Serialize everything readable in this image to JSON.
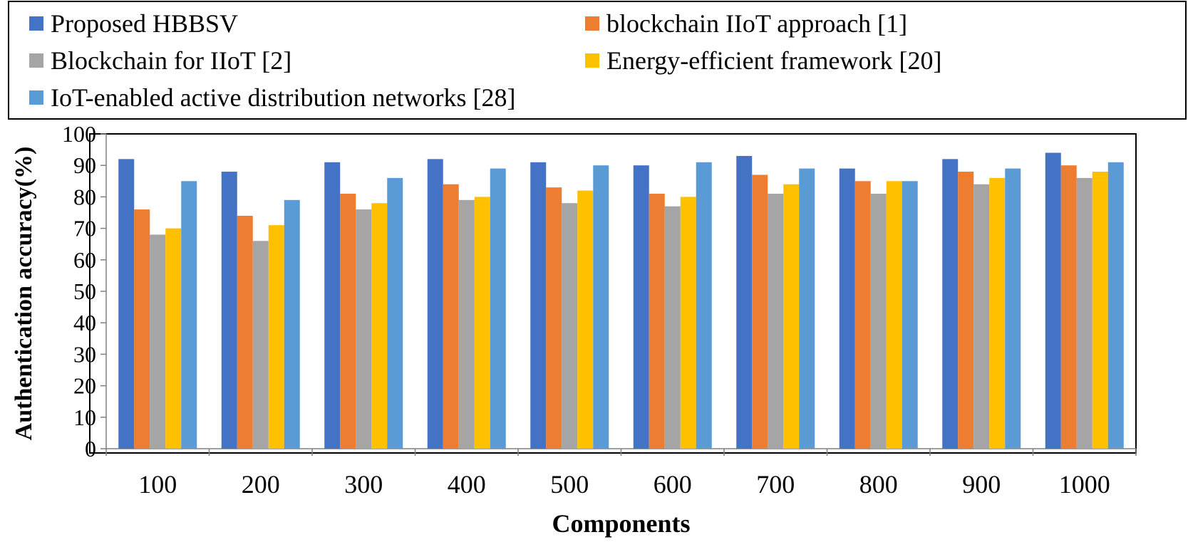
{
  "chart_data": {
    "type": "bar",
    "title": "",
    "xlabel": "Components",
    "ylabel": "Authentication accuracy(%)",
    "ylim": [
      0,
      100
    ],
    "yticks": [
      0,
      10,
      20,
      30,
      40,
      50,
      60,
      70,
      80,
      90,
      100
    ],
    "categories": [
      "100",
      "200",
      "300",
      "400",
      "500",
      "600",
      "700",
      "800",
      "900",
      "1000"
    ],
    "legend_position": "top",
    "series": [
      {
        "name": "Proposed HBBSV",
        "color": "#4472C4",
        "values": [
          92,
          88,
          91,
          92,
          91,
          90,
          93,
          89,
          92,
          94
        ]
      },
      {
        "name": "blockchain IIoT approach [1]",
        "color": "#ED7D31",
        "values": [
          76,
          74,
          81,
          84,
          83,
          81,
          87,
          85,
          88,
          90
        ]
      },
      {
        "name": "Blockchain for IIoT [2]",
        "color": "#A5A5A5",
        "values": [
          68,
          66,
          76,
          79,
          78,
          77,
          81,
          81,
          84,
          86
        ]
      },
      {
        "name": "Energy-efficient framework [20]",
        "color": "#FFC000",
        "values": [
          70,
          71,
          78,
          80,
          82,
          80,
          84,
          85,
          86,
          88
        ]
      },
      {
        "name": "IoT-enabled active distribution networks [28]",
        "color": "#5B9BD5",
        "values": [
          85,
          79,
          86,
          89,
          90,
          91,
          89,
          85,
          89,
          91
        ]
      }
    ]
  }
}
